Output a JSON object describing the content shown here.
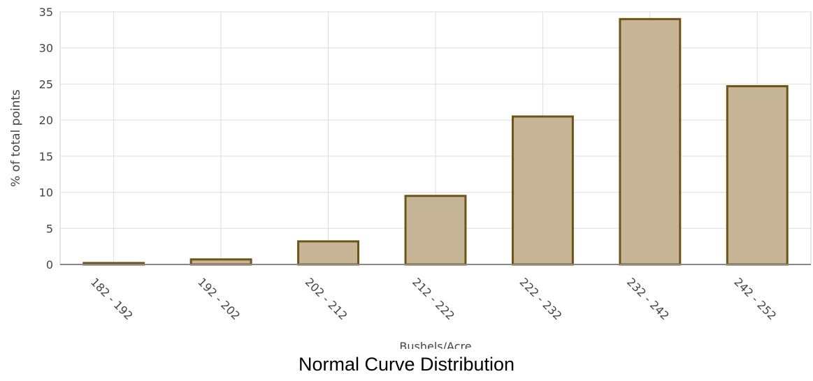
{
  "caption": "Normal Curve Distribution",
  "chart_data": {
    "type": "bar",
    "categories": [
      "182 - 192",
      "192 - 202",
      "202 - 212",
      "212 - 222",
      "222 - 232",
      "232 - 242",
      "242 - 252"
    ],
    "values": [
      0.2,
      0.7,
      3.2,
      9.5,
      20.5,
      34,
      24.7
    ],
    "title": "",
    "xlabel": "Bushels/Acre",
    "ylabel": "% of total points",
    "ylim": [
      0,
      35
    ],
    "yticks": [
      0,
      5,
      10,
      15,
      20,
      25,
      30,
      35
    ],
    "grid": true,
    "legend": "none",
    "colors": {
      "bar_fill": "#c6b596",
      "bar_stroke": "#6e5416",
      "grid": "#dddddd",
      "axis": "#888888",
      "text": "#444444"
    }
  }
}
